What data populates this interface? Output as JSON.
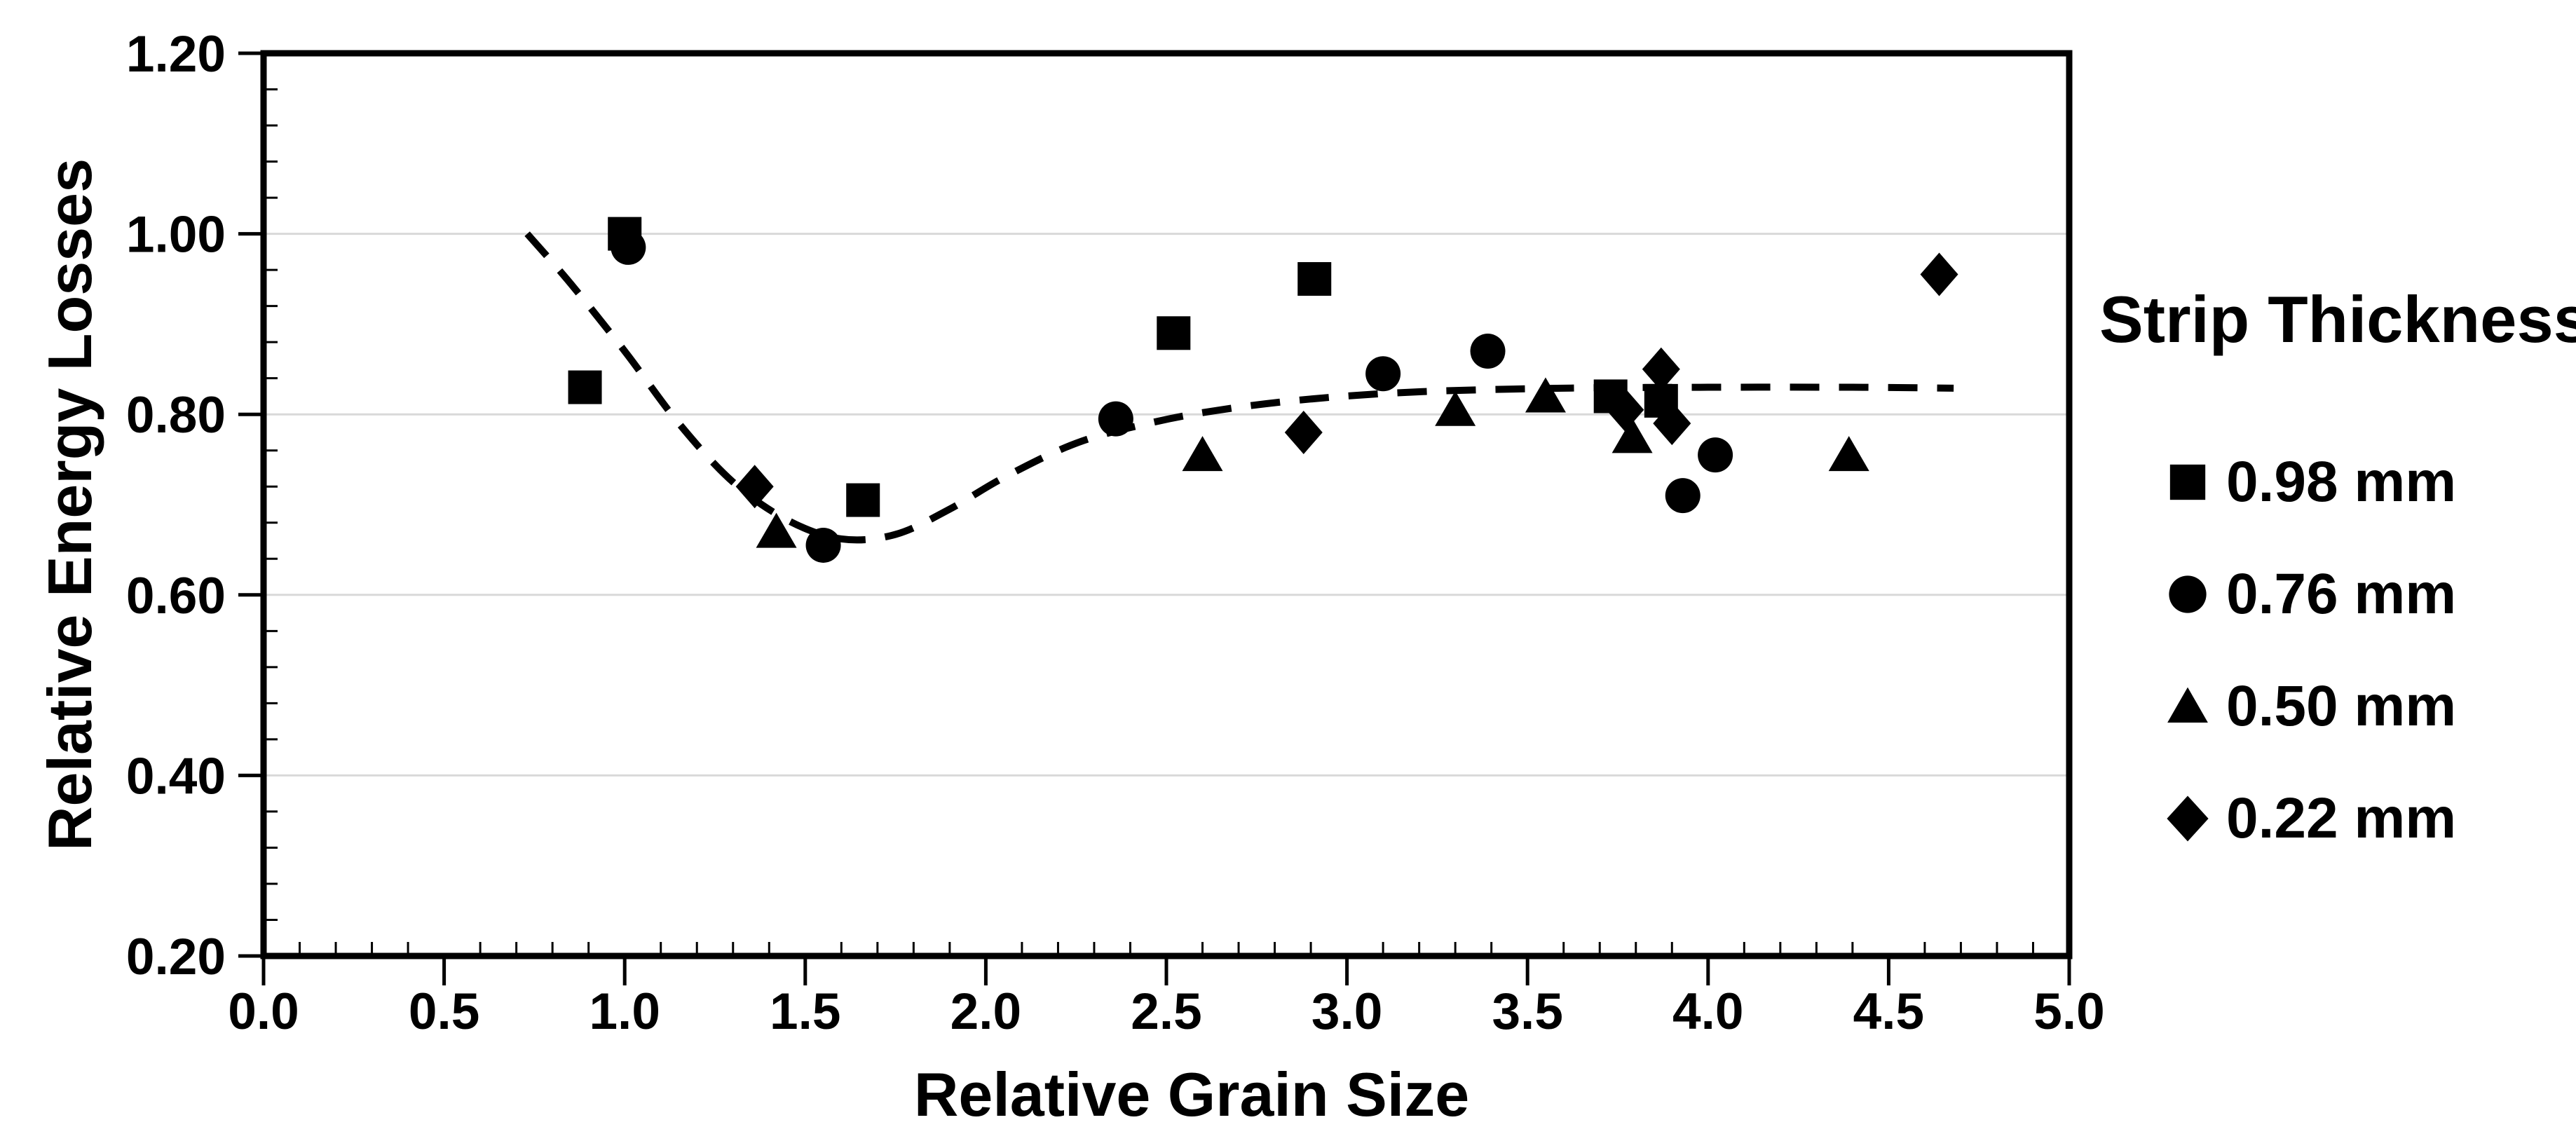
{
  "chart_data": {
    "type": "scatter",
    "title": "",
    "xlabel": "Relative Grain Size",
    "ylabel": "Relative Energy Losses",
    "xlim": [
      0.0,
      5.0
    ],
    "ylim": [
      0.2,
      1.2
    ],
    "x_major_tick": 0.5,
    "x_minor_tick": 0.1,
    "y_major_tick": 0.2,
    "y_minor_tick": 0.04,
    "x_tick_labels": [
      "0.0",
      "0.5",
      "1.0",
      "1.5",
      "2.0",
      "2.5",
      "3.0",
      "3.5",
      "4.0",
      "4.5",
      "5.0"
    ],
    "y_tick_labels": [
      "0.20",
      "0.40",
      "0.60",
      "0.80",
      "1.00",
      "1.20"
    ],
    "grid": "horizontal-major-only",
    "legend_position": "right",
    "legend_title": "Strip Thickness",
    "series": [
      {
        "name": "0.98 mm",
        "marker": "square",
        "points": [
          [
            0.89,
            0.83
          ],
          [
            1.0,
            1.0
          ],
          [
            1.66,
            0.705
          ],
          [
            2.52,
            0.89
          ],
          [
            2.91,
            0.95
          ],
          [
            3.73,
            0.82
          ],
          [
            3.87,
            0.815
          ]
        ]
      },
      {
        "name": "0.76 mm",
        "marker": "circle",
        "points": [
          [
            1.01,
            0.985
          ],
          [
            1.55,
            0.655
          ],
          [
            2.36,
            0.795
          ],
          [
            3.1,
            0.845
          ],
          [
            3.39,
            0.87
          ],
          [
            3.93,
            0.71
          ],
          [
            4.02,
            0.755
          ]
        ]
      },
      {
        "name": "0.50 mm",
        "marker": "triangle",
        "points": [
          [
            1.42,
            0.67
          ],
          [
            2.6,
            0.755
          ],
          [
            3.3,
            0.805
          ],
          [
            3.55,
            0.82
          ],
          [
            3.79,
            0.775
          ],
          [
            4.39,
            0.755
          ]
        ]
      },
      {
        "name": "0.22 mm",
        "marker": "diamond",
        "points": [
          [
            1.36,
            0.72
          ],
          [
            2.88,
            0.78
          ],
          [
            3.77,
            0.805
          ],
          [
            3.87,
            0.85
          ],
          [
            3.9,
            0.79
          ],
          [
            4.64,
            0.955
          ]
        ]
      }
    ],
    "trend_line": {
      "style": "dashed",
      "points": [
        [
          0.73,
          1.0
        ],
        [
          0.85,
          0.945
        ],
        [
          1.0,
          0.87
        ],
        [
          1.15,
          0.79
        ],
        [
          1.3,
          0.725
        ],
        [
          1.45,
          0.683
        ],
        [
          1.6,
          0.662
        ],
        [
          1.75,
          0.667
        ],
        [
          1.9,
          0.695
        ],
        [
          2.05,
          0.73
        ],
        [
          2.25,
          0.768
        ],
        [
          2.45,
          0.79
        ],
        [
          2.65,
          0.805
        ],
        [
          2.9,
          0.817
        ],
        [
          3.2,
          0.825
        ],
        [
          3.6,
          0.829
        ],
        [
          4.0,
          0.83
        ],
        [
          4.4,
          0.83
        ],
        [
          4.68,
          0.829
        ]
      ]
    },
    "colors": {
      "marker": "#000000",
      "axis": "#000000",
      "gridline": "#d9d9d9",
      "text": "#000000",
      "background": "#ffffff"
    }
  }
}
